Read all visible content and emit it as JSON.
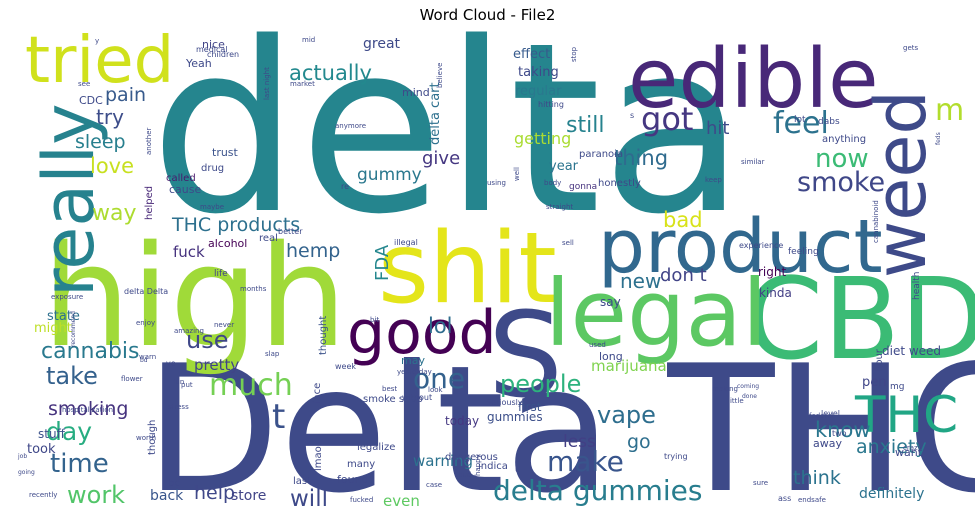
{
  "chart_data": {
    "type": "wordcloud",
    "title": "Word Cloud - File2",
    "colormap": "viridis",
    "words": [
      {
        "text": "delta",
        "weight": 1.0,
        "color": "#25858e"
      },
      {
        "text": "Delta THC",
        "weight": 0.78,
        "color": "#3e4a89"
      },
      {
        "text": "high",
        "weight": 0.62,
        "color": "#a0da39"
      },
      {
        "text": "CBD",
        "weight": 0.55,
        "color": "#3bbb75"
      },
      {
        "text": "shit",
        "weight": 0.5,
        "color": "#e4e51a"
      },
      {
        "text": "S",
        "weight": 0.45,
        "color": "#3e4a89"
      },
      {
        "text": "legal",
        "weight": 0.42,
        "color": "#5cc863"
      },
      {
        "text": "product",
        "weight": 0.4,
        "color": "#31688e"
      },
      {
        "text": "edible",
        "weight": 0.38,
        "color": "#482878"
      },
      {
        "text": "really",
        "weight": 0.37,
        "color": "#26828e"
      },
      {
        "text": "weed",
        "weight": 0.36,
        "color": "#3e4a89"
      },
      {
        "text": "tried",
        "weight": 0.33,
        "color": "#d0e11c"
      },
      {
        "text": "good",
        "weight": 0.28,
        "color": "#440154"
      },
      {
        "text": "THC",
        "weight": 0.27,
        "color": "#21a685"
      },
      {
        "text": "delta gummies",
        "weight": 0.18,
        "color": "#287d8e"
      },
      {
        "text": "people",
        "weight": 0.16,
        "color": "#2db27d"
      },
      {
        "text": "much",
        "weight": 0.16,
        "color": "#75d054"
      },
      {
        "text": "time",
        "weight": 0.15,
        "color": "#33638d"
      },
      {
        "text": "got",
        "weight": 0.16,
        "color": "#453781"
      },
      {
        "text": "feel",
        "weight": 0.15,
        "color": "#2c728e"
      },
      {
        "text": "smoke",
        "weight": 0.14,
        "color": "#3f4788"
      },
      {
        "text": "now",
        "weight": 0.14,
        "color": "#3bbb75"
      },
      {
        "text": "one",
        "weight": 0.14,
        "color": "#34618d"
      },
      {
        "text": "make",
        "weight": 0.14,
        "color": "#39558c"
      },
      {
        "text": "vape",
        "weight": 0.13,
        "color": "#2e6e8e"
      },
      {
        "text": "work",
        "weight": 0.13,
        "color": "#52c569"
      },
      {
        "text": "take",
        "weight": 0.13,
        "color": "#34618d"
      },
      {
        "text": "day",
        "weight": 0.13,
        "color": "#27ad81"
      },
      {
        "text": "use",
        "weight": 0.13,
        "color": "#3f4788"
      },
      {
        "text": "cannabis",
        "weight": 0.12,
        "color": "#29798e"
      },
      {
        "text": "actually",
        "weight": 0.12,
        "color": "#23898e"
      },
      {
        "text": "THC products",
        "weight": 0.11,
        "color": "#2d708e"
      },
      {
        "text": "anxiety",
        "weight": 0.11,
        "color": "#2a778e"
      },
      {
        "text": "will",
        "weight": 0.11,
        "color": "#3e4989"
      },
      {
        "text": "hemp",
        "weight": 0.11,
        "color": "#33638d"
      },
      {
        "text": "smoking",
        "weight": 0.11,
        "color": "#46337e"
      },
      {
        "text": "way",
        "weight": 0.1,
        "color": "#addc30"
      },
      {
        "text": "know",
        "weight": 0.1,
        "color": "#2a768e"
      },
      {
        "text": "sleep",
        "weight": 0.1,
        "color": "#277f8e"
      },
      {
        "text": "pain",
        "weight": 0.1,
        "color": "#375a8c"
      },
      {
        "text": "try",
        "weight": 0.1,
        "color": "#3d4d8a"
      },
      {
        "text": "love",
        "weight": 0.1,
        "color": "#c8e020"
      },
      {
        "text": "still",
        "weight": 0.1,
        "color": "#26828e"
      },
      {
        "text": "thing",
        "weight": 0.1,
        "color": "#2f6b8e"
      },
      {
        "text": "gummy",
        "weight": 0.09,
        "color": "#2a788e"
      },
      {
        "text": "lol",
        "weight": 0.1,
        "color": "#2f6c8e"
      },
      {
        "text": "new",
        "weight": 0.1,
        "color": "#2d718e"
      },
      {
        "text": "help",
        "weight": 0.1,
        "color": "#3f4889"
      },
      {
        "text": "bad",
        "weight": 0.1,
        "color": "#d8e219"
      },
      {
        "text": "give",
        "weight": 0.09,
        "color": "#453781"
      },
      {
        "text": "think",
        "weight": 0.09,
        "color": "#2c738e"
      },
      {
        "text": "hit",
        "weight": 0.09,
        "color": "#3e4a89"
      },
      {
        "text": "getting",
        "weight": 0.08,
        "color": "#aadc32"
      },
      {
        "text": "m",
        "weight": 0.13,
        "color": "#b2dd2d"
      },
      {
        "text": "t",
        "weight": 0.14,
        "color": "#3b528b"
      },
      {
        "text": "great",
        "weight": 0.08,
        "color": "#3e4a89"
      },
      {
        "text": "less",
        "weight": 0.08,
        "color": "#423f85"
      },
      {
        "text": "go",
        "weight": 0.09,
        "color": "#2e6f8e"
      },
      {
        "text": "don t",
        "weight": 0.09,
        "color": "#414487"
      },
      {
        "text": "FDA",
        "weight": 0.09,
        "color": "#24878e"
      },
      {
        "text": "fuck",
        "weight": 0.07,
        "color": "#46327e"
      },
      {
        "text": "warning",
        "weight": 0.08,
        "color": "#2c728e"
      },
      {
        "text": "even",
        "weight": 0.08,
        "color": "#5ec962"
      },
      {
        "text": "definitely",
        "weight": 0.08,
        "color": "#2c728e"
      },
      {
        "text": "pretty",
        "weight": 0.08,
        "color": "#414487"
      },
      {
        "text": "marijuana",
        "weight": 0.07,
        "color": "#7fd34e"
      },
      {
        "text": "delta cart",
        "weight": 0.06,
        "color": "#2d708e"
      },
      {
        "text": "effect",
        "weight": 0.06,
        "color": "#375b8d"
      },
      {
        "text": "taking",
        "weight": 0.06,
        "color": "#3e4989"
      },
      {
        "text": "regular",
        "weight": 0.06,
        "color": "#2a788e"
      },
      {
        "text": "year",
        "weight": 0.06,
        "color": "#2b748e"
      },
      {
        "text": "state",
        "weight": 0.06,
        "color": "#2d708e"
      },
      {
        "text": "might",
        "weight": 0.06,
        "color": "#bddf26"
      },
      {
        "text": "diet weed",
        "weight": 0.05,
        "color": "#3e4989"
      },
      {
        "text": "pen",
        "weight": 0.05,
        "color": "#404688"
      },
      {
        "text": "stuff",
        "weight": 0.05,
        "color": "#3b528b"
      },
      {
        "text": "took",
        "weight": 0.05,
        "color": "#3f4788"
      },
      {
        "text": "back",
        "weight": 0.05,
        "color": "#39568c"
      },
      {
        "text": "store",
        "weight": 0.05,
        "color": "#414487"
      },
      {
        "text": "kinda",
        "weight": 0.04,
        "color": "#433e85"
      },
      {
        "text": "right",
        "weight": 0.04,
        "color": "#440154"
      },
      {
        "text": "gummies",
        "weight": 0.04,
        "color": "#3c4f8a"
      },
      {
        "text": "today",
        "weight": 0.04,
        "color": "#453882"
      },
      {
        "text": "first",
        "weight": 0.04,
        "color": "#3b528b"
      },
      {
        "text": "say",
        "weight": 0.04,
        "color": "#3e4989"
      },
      {
        "text": "may",
        "weight": 0.04,
        "color": "#2c728e"
      },
      {
        "text": "cause",
        "weight": 0.04,
        "color": "#3e4989"
      },
      {
        "text": "alcohol",
        "weight": 0.04,
        "color": "#440154"
      },
      {
        "text": "Yeah",
        "weight": 0.04,
        "color": "#3e4989"
      },
      {
        "text": "nice",
        "weight": 0.04,
        "color": "#414487"
      },
      {
        "text": "CDC",
        "weight": 0.04,
        "color": "#3e4a89"
      },
      {
        "text": "mind",
        "weight": 0.04,
        "color": "#3e4989"
      },
      {
        "text": "trust",
        "weight": 0.04,
        "color": "#3b528b"
      },
      {
        "text": "drug",
        "weight": 0.03,
        "color": "#3e4a89"
      },
      {
        "text": "helped",
        "weight": 0.03,
        "color": "#482878"
      },
      {
        "text": "called",
        "weight": 0.03,
        "color": "#481a6c"
      },
      {
        "text": "real",
        "weight": 0.03,
        "color": "#3e4989"
      },
      {
        "text": "life",
        "weight": 0.03,
        "color": "#414487"
      },
      {
        "text": "paranoia",
        "weight": 0.03,
        "color": "#3e4a89"
      },
      {
        "text": "honestly",
        "weight": 0.03,
        "color": "#3e4989"
      },
      {
        "text": "gonna",
        "weight": 0.03,
        "color": "#46327e"
      },
      {
        "text": "smoke shop",
        "weight": 0.03,
        "color": "#3e4a89"
      },
      {
        "text": "thought",
        "weight": 0.03,
        "color": "#3b528b"
      },
      {
        "text": "long",
        "weight": 0.03,
        "color": "#3e4a89"
      },
      {
        "text": "face",
        "weight": 0.03,
        "color": "#3e4989"
      },
      {
        "text": "lmao",
        "weight": 0.03,
        "color": "#3e4989"
      },
      {
        "text": "found",
        "weight": 0.03,
        "color": "#3e4989"
      },
      {
        "text": "dangerous",
        "weight": 0.03,
        "color": "#3e4989"
      },
      {
        "text": "indica",
        "weight": 0.03,
        "color": "#3e4989"
      },
      {
        "text": "many",
        "weight": 0.03,
        "color": "#3e4989"
      },
      {
        "text": "legalize",
        "weight": 0.03,
        "color": "#3e4989"
      },
      {
        "text": "bc",
        "weight": 0.03,
        "color": "#3e4989"
      },
      {
        "text": "last",
        "weight": 0.03,
        "color": "#3e4989"
      },
      {
        "text": "though",
        "weight": 0.03,
        "color": "#3e4989"
      },
      {
        "text": "hour",
        "weight": 0.02,
        "color": "#3e4989"
      },
      {
        "text": "away",
        "weight": 0.03,
        "color": "#3e4989"
      },
      {
        "text": "want",
        "weight": 0.03,
        "color": "#3e4989"
      },
      {
        "text": "mg",
        "weight": 0.02,
        "color": "#3e4989"
      },
      {
        "text": "anything",
        "weight": 0.03,
        "color": "#3e4989"
      },
      {
        "text": "lot",
        "weight": 0.03,
        "color": "#3e4989"
      },
      {
        "text": "dabs",
        "weight": 0.02,
        "color": "#3e4989"
      },
      {
        "text": "health",
        "weight": 0.02,
        "color": "#3e4989"
      },
      {
        "text": "level",
        "weight": 0.02,
        "color": "#3e4989"
      },
      {
        "text": "experience",
        "weight": 0.02,
        "color": "#3e4989"
      },
      {
        "text": "feeling",
        "weight": 0.02,
        "color": "#3e4989"
      },
      {
        "text": "similar",
        "weight": 0.02,
        "color": "#3e4989"
      },
      {
        "text": "keep",
        "weight": 0.02,
        "color": "#3e4989"
      },
      {
        "text": "stop",
        "weight": 0.02,
        "color": "#3e4989"
      },
      {
        "text": "hitting",
        "weight": 0.02,
        "color": "#3e4989"
      },
      {
        "text": "believe",
        "weight": 0.02,
        "color": "#3e4989"
      },
      {
        "text": "market",
        "weight": 0.02,
        "color": "#3e4989"
      },
      {
        "text": "last night",
        "weight": 0.02,
        "color": "#3e4989"
      },
      {
        "text": "children",
        "weight": 0.02,
        "color": "#3e4989"
      },
      {
        "text": "medical",
        "weight": 0.02,
        "color": "#3e4989"
      },
      {
        "text": "mid",
        "weight": 0.02,
        "color": "#3e4989"
      },
      {
        "text": "see",
        "weight": 0.02,
        "color": "#3e4989"
      },
      {
        "text": "another",
        "weight": 0.02,
        "color": "#3e4989"
      },
      {
        "text": "maybe",
        "weight": 0.02,
        "color": "#3e4989"
      },
      {
        "text": "better",
        "weight": 0.02,
        "color": "#3e4989"
      },
      {
        "text": "illegal",
        "weight": 0.02,
        "color": "#3e4989"
      },
      {
        "text": "straight",
        "weight": 0.02,
        "color": "#3e4989"
      },
      {
        "text": "sell",
        "weight": 0.02,
        "color": "#3e4989"
      },
      {
        "text": "used",
        "weight": 0.02,
        "color": "#3e4989"
      },
      {
        "text": "cannabinoid",
        "weight": 0.02,
        "color": "#3e4989"
      },
      {
        "text": "delta Delta",
        "weight": 0.02,
        "color": "#3e4989"
      },
      {
        "text": "months",
        "weight": 0.02,
        "color": "#3e4989"
      },
      {
        "text": "exposure",
        "weight": 0.02,
        "color": "#3e4989"
      },
      {
        "text": "enjoy",
        "weight": 0.02,
        "color": "#3e4989"
      },
      {
        "text": "never",
        "weight": 0.02,
        "color": "#3e4989"
      },
      {
        "text": "recommend",
        "weight": 0.02,
        "color": "#3e4989"
      },
      {
        "text": "amazing",
        "weight": 0.02,
        "color": "#3e4989"
      },
      {
        "text": "warn",
        "weight": 0.02,
        "color": "#3e4989"
      },
      {
        "text": "ve",
        "weight": 0.02,
        "color": "#3e4989"
      },
      {
        "text": "flower",
        "weight": 0.02,
        "color": "#3e4989"
      },
      {
        "text": "fun",
        "weight": 0.02,
        "color": "#3e4989"
      },
      {
        "text": "put",
        "weight": 0.02,
        "color": "#3e4989"
      },
      {
        "text": "slap",
        "weight": 0.02,
        "color": "#3e4989"
      },
      {
        "text": "week",
        "weight": 0.02,
        "color": "#3e4989"
      },
      {
        "text": "yesterday",
        "weight": 0.02,
        "color": "#3e4989"
      },
      {
        "text": "best",
        "weight": 0.02,
        "color": "#3e4989"
      },
      {
        "text": "without",
        "weight": 0.02,
        "color": "#3e4989"
      },
      {
        "text": "look",
        "weight": 0.02,
        "color": "#3e4989"
      },
      {
        "text": "Seriously",
        "weight": 0.02,
        "color": "#3e4989"
      },
      {
        "text": "stress",
        "weight": 0.02,
        "color": "#3e4989"
      },
      {
        "text": "hospitalization",
        "weight": 0.02,
        "color": "#3e4989"
      },
      {
        "text": "worth",
        "weight": 0.02,
        "color": "#3e4989"
      },
      {
        "text": "case",
        "weight": 0.02,
        "color": "#3e4989"
      },
      {
        "text": "bud",
        "weight": 0.02,
        "color": "#3e4989"
      },
      {
        "text": "happy",
        "weight": 0.02,
        "color": "#3e4989"
      },
      {
        "text": "trying",
        "weight": 0.02,
        "color": "#3e4989"
      },
      {
        "text": "little",
        "weight": 0.02,
        "color": "#3e4989"
      },
      {
        "text": "federal",
        "weight": 0.02,
        "color": "#3e4989"
      },
      {
        "text": "crazy",
        "weight": 0.02,
        "color": "#3e4989"
      },
      {
        "text": "fucked",
        "weight": 0.02,
        "color": "#3e4989"
      },
      {
        "text": "recently",
        "weight": 0.02,
        "color": "#3e4989"
      },
      {
        "text": "sure",
        "weight": 0.02,
        "color": "#3e4989"
      },
      {
        "text": "ass",
        "weight": 0.02,
        "color": "#3e4989"
      },
      {
        "text": "endsafe",
        "weight": 0.02,
        "color": "#3e4989"
      },
      {
        "text": "coming",
        "weight": 0.02,
        "color": "#3e4989"
      },
      {
        "text": "making",
        "weight": 0.02,
        "color": "#3e4989"
      },
      {
        "text": "done",
        "weight": 0.02,
        "color": "#3e4989"
      },
      {
        "text": "anymore",
        "weight": 0.02,
        "color": "#3e4989"
      },
      {
        "text": "using",
        "weight": 0.02,
        "color": "#3e4989"
      },
      {
        "text": "body",
        "weight": 0.02,
        "color": "#3e4989"
      },
      {
        "text": "well",
        "weight": 0.02,
        "color": "#3e4989"
      },
      {
        "text": "re",
        "weight": 0.02,
        "color": "#3e4989"
      },
      {
        "text": "job",
        "weight": 0.02,
        "color": "#3e4989"
      },
      {
        "text": "going",
        "weight": 0.02,
        "color": "#3e4989"
      },
      {
        "text": "two",
        "weight": 0.02,
        "color": "#3e4989"
      },
      {
        "text": "gets",
        "weight": 0.02,
        "color": "#3e4989"
      },
      {
        "text": "feds",
        "weight": 0.02,
        "color": "#3e4989"
      },
      {
        "text": "y",
        "weight": 0.02,
        "color": "#3e4989"
      },
      {
        "text": "s",
        "weight": 0.02,
        "color": "#3e4989"
      },
      {
        "text": "u",
        "weight": 0.02,
        "color": "#3e4989"
      },
      {
        "text": "bd",
        "weight": 0.02,
        "color": "#3e4989"
      },
      {
        "text": "bit",
        "weight": 0.02,
        "color": "#3e4989"
      }
    ]
  }
}
